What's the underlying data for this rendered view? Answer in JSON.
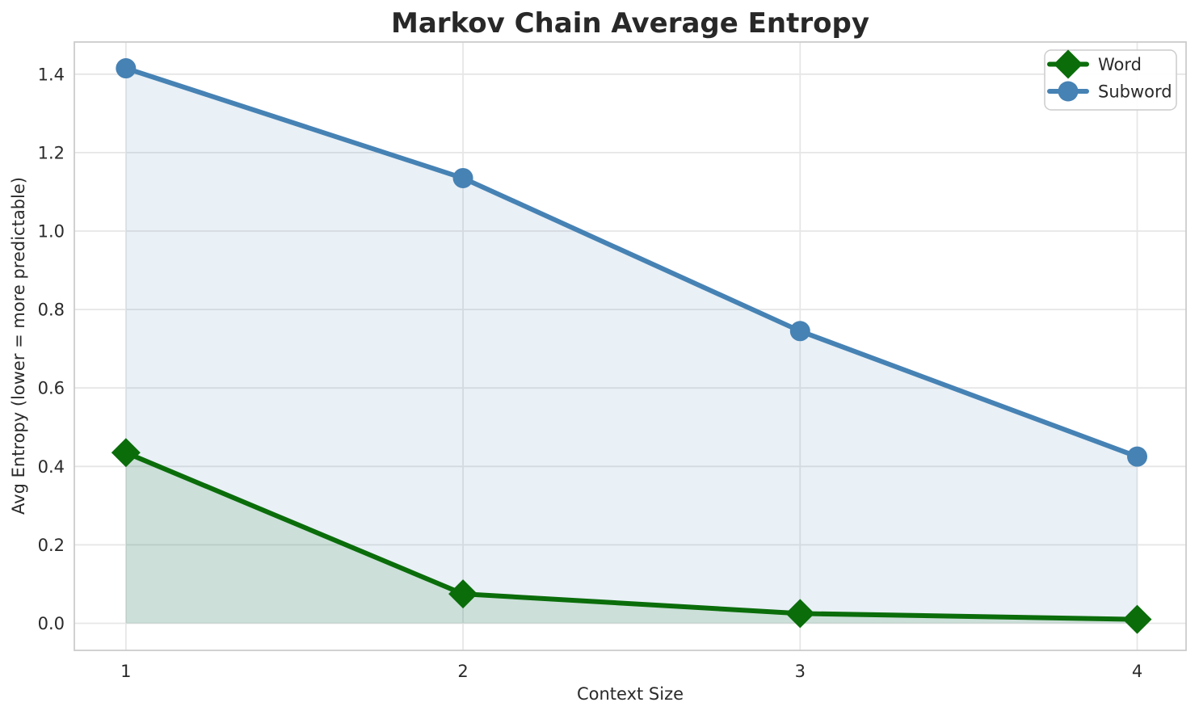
{
  "figure": {
    "background": "#ffffff"
  },
  "style": {
    "grid_color": "#e6e6e6",
    "spine_color": "#cccccc",
    "text_color": "#2a2a2a",
    "title_color": "#282828",
    "legend_border_color": "#cccccc",
    "legend_background": "rgba(255,255,255,0.9)"
  },
  "chart_data": {
    "type": "line",
    "title": "Markov Chain Average Entropy",
    "xlabel": "Context Size",
    "ylabel": "Avg Entropy (lower = more predictable)",
    "x": [
      1,
      2,
      3,
      4
    ],
    "series": [
      {
        "name": "Word",
        "values": [
          0.435,
          0.075,
          0.025,
          0.01
        ],
        "color": "#0a6d0a",
        "fill": "rgba(10,109,10,0.13)",
        "marker": "diamond",
        "fill_to": 0
      },
      {
        "name": "Subword",
        "values": [
          1.415,
          1.135,
          0.745,
          0.425
        ],
        "color": "#4682b4",
        "fill": "rgba(70,130,180,0.12)",
        "marker": "circle",
        "fill_to": 0
      }
    ],
    "xticks": [
      "1",
      "2",
      "3",
      "4"
    ],
    "yticks": [
      "0.0",
      "0.2",
      "0.4",
      "0.6",
      "0.8",
      "1.0",
      "1.2",
      "1.4"
    ],
    "xlim": [
      0.847,
      4.145
    ],
    "ylim": [
      -0.069,
      1.482
    ],
    "grid": true,
    "legend_position": "upper right",
    "legend_labels": [
      "Word",
      "Subword"
    ]
  }
}
